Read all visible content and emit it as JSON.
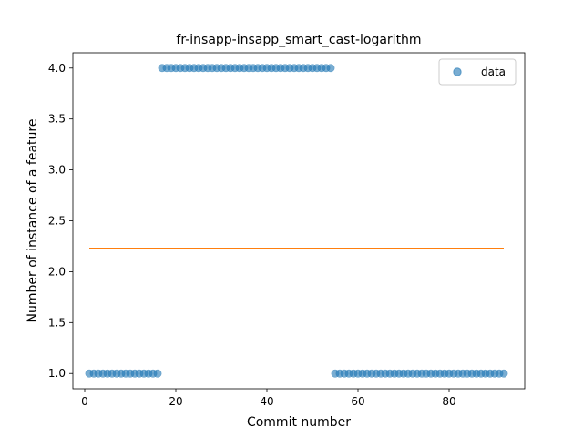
{
  "chart_data": {
    "type": "scatter",
    "title": "fr-insapp-insapp_smart_cast-logarithm",
    "xlabel": "Commit number",
    "ylabel": "Number of instance of a feature",
    "xlim": [
      -2.6,
      96.6
    ],
    "ylim": [
      0.85,
      4.15
    ],
    "xticks": [
      0,
      20,
      40,
      60,
      80
    ],
    "xtick_labels": [
      "0",
      "20",
      "40",
      "60",
      "80"
    ],
    "yticks": [
      1.0,
      1.5,
      2.0,
      2.5,
      3.0,
      3.5,
      4.0
    ],
    "ytick_labels": [
      "1.0",
      "1.5",
      "2.0",
      "2.5",
      "3.0",
      "3.5",
      "4.0"
    ],
    "grid": false,
    "legend_position": "upper right",
    "series": [
      {
        "name": "data",
        "kind": "scatter",
        "color": "#1f77b4",
        "segments": [
          {
            "x_start": 1,
            "x_end": 16,
            "y": 1.0
          },
          {
            "x_start": 17,
            "x_end": 54,
            "y": 4.0
          },
          {
            "x_start": 55,
            "x_end": 92,
            "y": 1.0
          }
        ]
      },
      {
        "kind": "line",
        "color": "#ff7f0e",
        "x": [
          1,
          92
        ],
        "y": [
          2.23,
          2.23
        ]
      }
    ]
  }
}
